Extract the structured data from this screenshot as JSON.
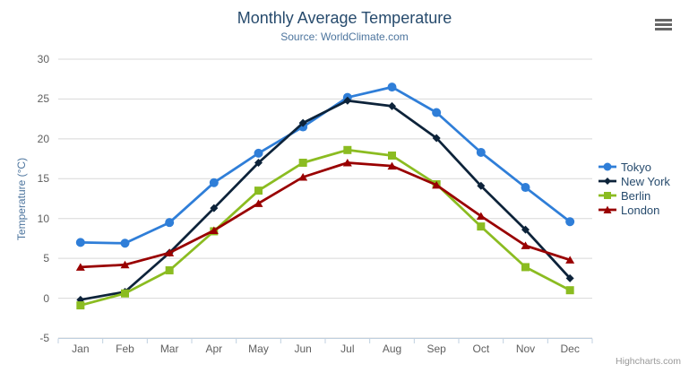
{
  "credits": "Highcharts.com",
  "chart_data": {
    "type": "line",
    "title": "Monthly Average Temperature",
    "subtitle": "Source: WorldClimate.com",
    "xlabel": "",
    "ylabel": "Temperature (°C)",
    "categories": [
      "Jan",
      "Feb",
      "Mar",
      "Apr",
      "May",
      "Jun",
      "Jul",
      "Aug",
      "Sep",
      "Oct",
      "Nov",
      "Dec"
    ],
    "ylim": [
      -5,
      30
    ],
    "yticks": [
      -5,
      0,
      5,
      10,
      15,
      20,
      25,
      30
    ],
    "grid": "horizontal",
    "legend_position": "right",
    "axis_line_color": "#c0d0e0",
    "grid_color": "#d8d8d8",
    "series": [
      {
        "name": "Tokyo",
        "color": "#2f7ed8",
        "marker": "circle",
        "values": [
          7.0,
          6.9,
          9.5,
          14.5,
          18.2,
          21.5,
          25.2,
          26.5,
          23.3,
          18.3,
          13.9,
          9.6
        ]
      },
      {
        "name": "New York",
        "color": "#0d233a",
        "marker": "diamond",
        "values": [
          -0.2,
          0.8,
          5.7,
          11.3,
          17.0,
          22.0,
          24.8,
          24.1,
          20.1,
          14.1,
          8.6,
          2.5
        ]
      },
      {
        "name": "Berlin",
        "color": "#8bbc21",
        "marker": "square",
        "values": [
          -0.9,
          0.6,
          3.5,
          8.4,
          13.5,
          17.0,
          18.6,
          17.9,
          14.3,
          9.0,
          3.9,
          1.0
        ]
      },
      {
        "name": "London",
        "color": "#990000",
        "marker": "triangle",
        "values": [
          3.9,
          4.2,
          5.7,
          8.5,
          11.9,
          15.2,
          17.0,
          16.6,
          14.2,
          10.3,
          6.6,
          4.8
        ]
      }
    ]
  }
}
